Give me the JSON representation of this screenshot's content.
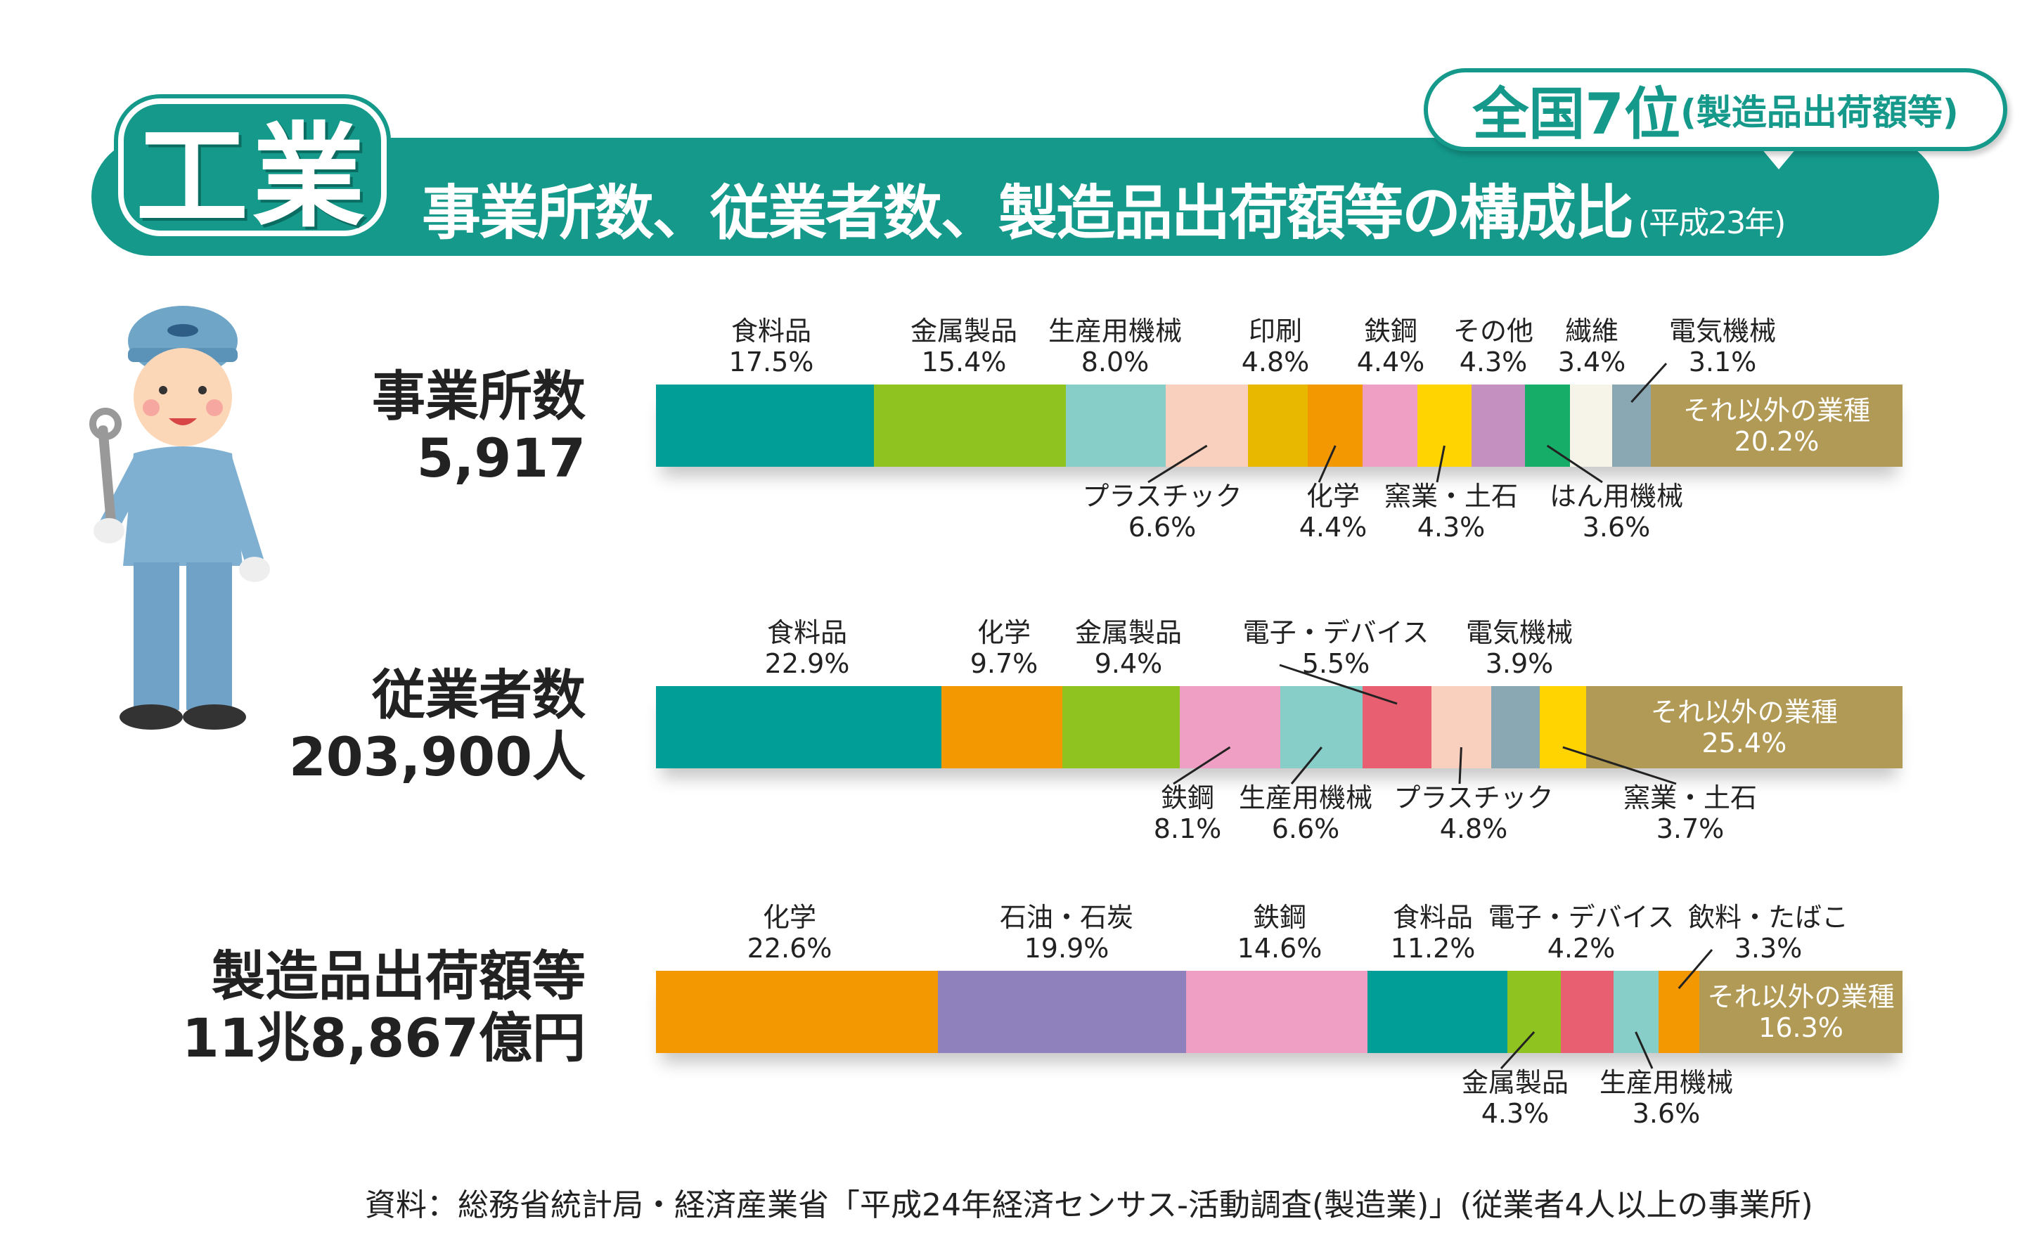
{
  "header": {
    "category": "工業",
    "title": "事業所数、従業者数、製造品出荷額等の構成比",
    "year": "(平成23年)",
    "rank": "全国7位",
    "rank_note": "(製造品出荷額等)"
  },
  "source": "資料：総務省統計局・経済産業省「平成24年経済センサス-活動調査(製造業)」(従業者4人以上の事業所)",
  "chart_data": [
    {
      "type": "bar",
      "stacked": true,
      "title": "事業所数",
      "total": "5,917",
      "segments": [
        {
          "name": "食料品",
          "value": 17.5,
          "color": "#009e96",
          "side": "above"
        },
        {
          "name": "金属製品",
          "value": 15.4,
          "color": "#8fc31f",
          "side": "above"
        },
        {
          "name": "生産用機械",
          "value": 8.0,
          "color": "#87cdc8",
          "side": "above"
        },
        {
          "name": "プラスチック",
          "value": 6.6,
          "color": "#f8d0bd",
          "side": "below"
        },
        {
          "name": "印刷",
          "value": 4.8,
          "color": "#e8b700",
          "side": "above"
        },
        {
          "name": "化学",
          "value": 4.4,
          "color": "#f39800",
          "side": "below"
        },
        {
          "name": "鉄鋼",
          "value": 4.4,
          "color": "#f09fc4",
          "side": "above"
        },
        {
          "name": "窯業・土石",
          "value": 4.3,
          "color": "#ffd400",
          "side": "below"
        },
        {
          "name": "その他",
          "value": 4.3,
          "color": "#c490bf",
          "side": "above"
        },
        {
          "name": "はん用機械",
          "value": 3.6,
          "color": "#16ad68",
          "side": "below"
        },
        {
          "name": "繊維",
          "value": 3.4,
          "color": "#f6f3e8",
          "side": "above"
        },
        {
          "name": "電気機械",
          "value": 3.1,
          "color": "#8aa8b4",
          "side": "above"
        },
        {
          "name": "それ以外の業種",
          "value": 20.2,
          "color": "#b09a55",
          "side": "inside"
        }
      ]
    },
    {
      "type": "bar",
      "stacked": true,
      "title": "従業者数",
      "total": "203,900人",
      "segments": [
        {
          "name": "食料品",
          "value": 22.9,
          "color": "#009e96",
          "side": "above"
        },
        {
          "name": "化学",
          "value": 9.7,
          "color": "#f39800",
          "side": "above"
        },
        {
          "name": "金属製品",
          "value": 9.4,
          "color": "#8fc31f",
          "side": "above"
        },
        {
          "name": "鉄鋼",
          "value": 8.1,
          "color": "#f09fc4",
          "side": "below"
        },
        {
          "name": "生産用機械",
          "value": 6.6,
          "color": "#87cdc8",
          "side": "below"
        },
        {
          "name": "電子・デバイス",
          "value": 5.5,
          "color": "#e95f72",
          "side": "above"
        },
        {
          "name": "プラスチック",
          "value": 4.8,
          "color": "#f8d0bd",
          "side": "below"
        },
        {
          "name": "電気機械",
          "value": 3.9,
          "color": "#8aa8b4",
          "side": "above"
        },
        {
          "name": "窯業・土石",
          "value": 3.7,
          "color": "#ffd400",
          "side": "below"
        },
        {
          "name": "それ以外の業種",
          "value": 25.4,
          "color": "#b09a55",
          "side": "inside"
        }
      ]
    },
    {
      "type": "bar",
      "stacked": true,
      "title": "製造品出荷額等",
      "total": "11兆8,867億円",
      "segments": [
        {
          "name": "化学",
          "value": 22.6,
          "color": "#f39800",
          "side": "above"
        },
        {
          "name": "石油・石炭",
          "value": 19.9,
          "color": "#8f82bc",
          "side": "above"
        },
        {
          "name": "鉄鋼",
          "value": 14.6,
          "color": "#f09fc4",
          "side": "above"
        },
        {
          "name": "食料品",
          "value": 11.2,
          "color": "#009e96",
          "side": "above"
        },
        {
          "name": "金属製品",
          "value": 4.3,
          "color": "#8fc31f",
          "side": "below"
        },
        {
          "name": "電子・デバイス",
          "value": 4.2,
          "color": "#e95f72",
          "side": "above"
        },
        {
          "name": "生産用機械",
          "value": 3.6,
          "color": "#87cdc8",
          "side": "below"
        },
        {
          "name": "飲料・たばこ",
          "value": 3.3,
          "color": "#f39800",
          "side": "above"
        },
        {
          "name": "それ以外の業種",
          "value": 16.3,
          "color": "#b09a55",
          "side": "inside"
        }
      ]
    }
  ]
}
